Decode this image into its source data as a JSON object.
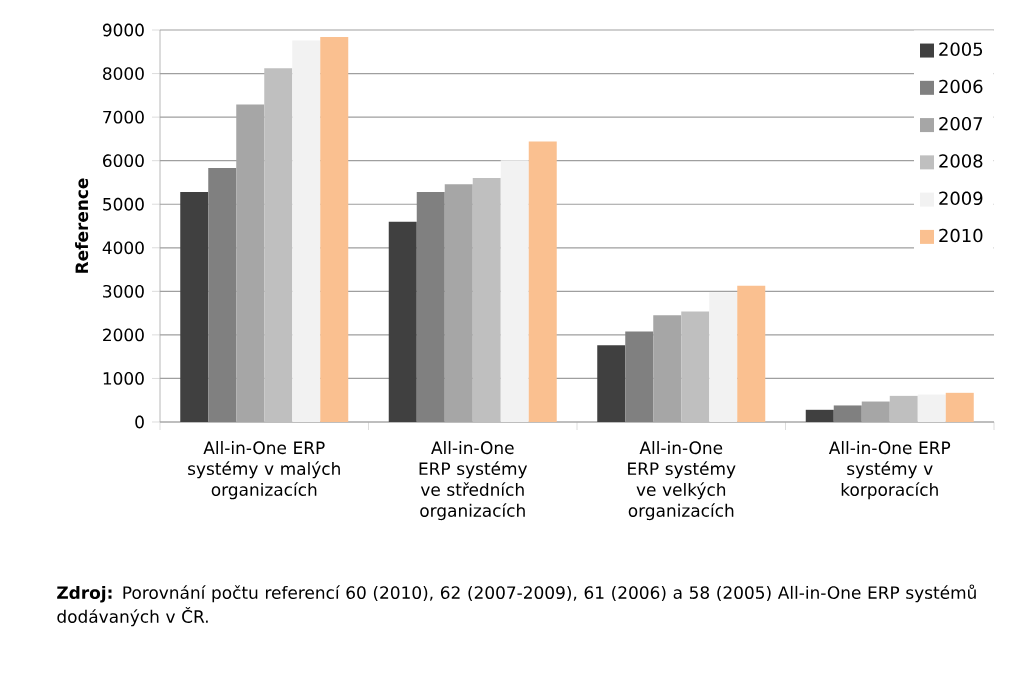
{
  "chart_data": {
    "type": "bar",
    "ylabel": "Reference",
    "categories": [
      "All-in-One ERP systémy v malých organizacích",
      "All-in-One ERP systémy ve středních organizacích",
      "All-in-One ERP systémy ve velkých organizacích",
      "All-in-One ERP systémy v korporacích"
    ],
    "series": [
      {
        "name": "2005",
        "color": "#404040",
        "values": [
          5280,
          4600,
          1760,
          280
        ]
      },
      {
        "name": "2006",
        "color": "#808080",
        "values": [
          5830,
          5280,
          2080,
          380
        ]
      },
      {
        "name": "2007",
        "color": "#a6a6a6",
        "values": [
          7290,
          5460,
          2450,
          470
        ]
      },
      {
        "name": "2008",
        "color": "#bfbfbf",
        "values": [
          8120,
          5600,
          2540,
          600
        ]
      },
      {
        "name": "2009",
        "color": "#f2f2f2",
        "values": [
          8760,
          6010,
          2980,
          630
        ]
      },
      {
        "name": "2010",
        "color": "#fac090",
        "values": [
          8840,
          6440,
          3130,
          670
        ]
      }
    ],
    "ylim": [
      0,
      9000
    ],
    "yticks": [
      0,
      1000,
      2000,
      3000,
      4000,
      5000,
      6000,
      7000,
      8000,
      9000
    ],
    "grid": "y",
    "legend": "top right",
    "annotations": [
      "**Zdroj:** Porovnání počtu referencí 60 (2010), 62 (2007-2009), 61 (2006) a 58 (2005) All-in-One ERP systémů dodávaných v ČR."
    ]
  }
}
